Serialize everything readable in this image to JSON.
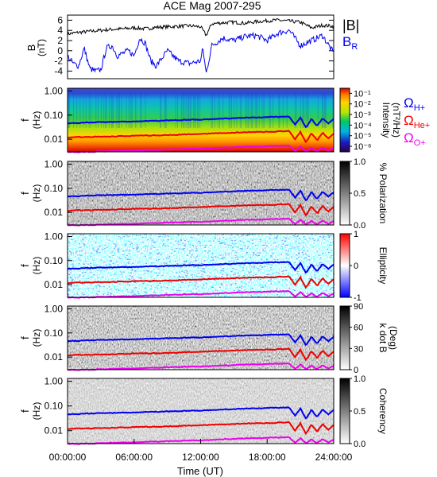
{
  "chart_data": [
    {
      "type": "line",
      "title": "ACE Mag 2007-295",
      "ylabel": "B",
      "yunit": "(nT)",
      "ylim": [
        -5.5,
        7
      ],
      "yticks": [
        "6",
        "4",
        "2",
        "0",
        "-2",
        "-4"
      ],
      "ytick_values": [
        6,
        4,
        2,
        0,
        -2,
        -4
      ],
      "grid": false,
      "legend_position": "right",
      "series": [
        {
          "name": "|B|",
          "color": "#000000",
          "x": [
            0,
            1,
            2,
            3,
            4,
            5,
            6,
            7,
            8,
            9,
            10,
            11,
            12,
            12.5,
            13,
            14,
            15,
            16,
            17,
            18,
            19,
            20,
            21,
            22,
            23,
            24
          ],
          "values": [
            3.3,
            3.6,
            3.8,
            4.0,
            4.2,
            4.3,
            4.5,
            4.3,
            4.6,
            4.7,
            4.8,
            4.9,
            4.7,
            3.0,
            5.3,
            5.5,
            5.6,
            5.4,
            5.7,
            5.9,
            6.0,
            5.8,
            5.6,
            4.5,
            5.0,
            4.8
          ]
        },
        {
          "name": "B",
          "subscript": "R",
          "color": "#0000ee",
          "x": [
            0,
            0.5,
            1,
            1.5,
            2,
            2.5,
            3,
            3.5,
            4,
            4.5,
            5,
            5.5,
            6,
            6.5,
            7,
            7.5,
            8,
            9,
            10,
            11,
            12,
            12.2,
            12.5,
            13,
            14,
            15,
            16,
            17,
            18,
            19,
            20,
            21,
            22,
            23,
            24
          ],
          "values": [
            -1.0,
            -2.5,
            -3.0,
            0.5,
            -3.5,
            -4.0,
            -3.8,
            0.5,
            1.0,
            -1.0,
            -0.5,
            0.0,
            -1.0,
            2.5,
            1.5,
            -2.0,
            -3.0,
            0.0,
            -2.0,
            -2.5,
            -2.0,
            0.5,
            -4.5,
            1.0,
            2.5,
            2.0,
            2.8,
            3.0,
            2.0,
            3.5,
            4.0,
            1.0,
            2.0,
            3.0,
            -0.5
          ]
        }
      ],
      "xlim": [
        0,
        24
      ]
    },
    {
      "type": "heatmap",
      "ylabel": "f",
      "yunit": "(Hz)",
      "yscale": "log",
      "ylim": [
        0.003,
        1.3
      ],
      "yticks": [
        "1.00",
        "0.10",
        "0.01"
      ],
      "ytick_values": [
        1,
        0.1,
        0.01
      ],
      "colorbar_label": "Intensity",
      "colorbar_unit": "(nT²/Hz)",
      "colorbar_scale": "log",
      "colorbar_ticks": [
        "10⁻¹",
        "10⁻²",
        "10⁻³",
        "10⁻⁴",
        "10⁻⁵",
        "10⁻⁶"
      ],
      "colorbar_tick_values": [
        0.1,
        0.01,
        0.001,
        0.0001,
        1e-05,
        1e-06
      ],
      "colorbar_range": [
        3e-07,
        0.3
      ],
      "colormap": "rainbow",
      "legend": [
        {
          "symbol": "Ω",
          "subscript": "H+",
          "color": "#0000ee"
        },
        {
          "symbol": "Ω",
          "subscript": "He+",
          "color": "#ee0000"
        },
        {
          "symbol": "Ω",
          "subscript": "O+",
          "color": "#ee00ee"
        }
      ]
    },
    {
      "type": "heatmap",
      "ylabel": "f",
      "yunit": "(Hz)",
      "yscale": "log",
      "ylim": [
        0.003,
        1.3
      ],
      "yticks": [
        "1.00",
        "0.10",
        "0.01"
      ],
      "ytick_values": [
        1,
        0.1,
        0.01
      ],
      "colorbar_label": "% Polarization",
      "colorbar_ticks": [
        "1.0",
        "0.5",
        "0.0"
      ],
      "colorbar_tick_values": [
        1.0,
        0.5,
        0.0
      ],
      "colorbar_range": [
        0,
        1
      ],
      "colormap": "gray"
    },
    {
      "type": "heatmap",
      "ylabel": "f",
      "yunit": "(Hz)",
      "yscale": "log",
      "ylim": [
        0.003,
        1.3
      ],
      "yticks": [
        "1.00",
        "0.10",
        "0.01"
      ],
      "ytick_values": [
        1,
        0.1,
        0.01
      ],
      "colorbar_label": "Ellipticity",
      "colorbar_ticks": [
        "1",
        "0",
        "-1"
      ],
      "colorbar_tick_values": [
        1,
        0,
        -1
      ],
      "colorbar_range": [
        -1,
        1
      ],
      "colormap": "blue-white-red"
    },
    {
      "type": "heatmap",
      "ylabel": "f",
      "yunit": "(Hz)",
      "yscale": "log",
      "ylim": [
        0.003,
        1.3
      ],
      "yticks": [
        "1.00",
        "0.10",
        "0.01"
      ],
      "ytick_values": [
        1,
        0.1,
        0.01
      ],
      "colorbar_label": "k dot B",
      "colorbar_unit": "(Deg)",
      "colorbar_ticks": [
        "90",
        "60",
        "30",
        "0"
      ],
      "colorbar_tick_values": [
        90,
        60,
        30,
        0
      ],
      "colorbar_range": [
        0,
        90
      ],
      "colormap": "gray"
    },
    {
      "type": "heatmap",
      "ylabel": "f",
      "yunit": "(Hz)",
      "yscale": "log",
      "ylim": [
        0.003,
        1.3
      ],
      "yticks": [
        "1.00",
        "0.10",
        "0.01"
      ],
      "ytick_values": [
        1,
        0.1,
        0.01
      ],
      "colorbar_label": "Coherency",
      "colorbar_ticks": [
        "1.0",
        "0.5",
        "0.0"
      ],
      "colorbar_tick_values": [
        1.0,
        0.5,
        0.0
      ],
      "colorbar_range": [
        0,
        1
      ],
      "colormap": "gray",
      "xlabel": "Time (UT)",
      "xticks": [
        "00:00:00",
        "06:00:00",
        "12:00:00",
        "18:00:00",
        "24:00:00"
      ],
      "xtick_values": [
        0,
        6,
        12,
        18,
        24
      ],
      "xlim": [
        0,
        24
      ]
    }
  ],
  "gyrofrequency_lines": [
    {
      "name": "H+",
      "color": "#0000ee",
      "x": [
        0,
        2,
        4,
        6,
        8,
        10,
        12,
        14,
        16,
        18,
        19,
        20,
        20.5,
        21,
        21.5,
        22,
        22.5,
        23,
        23.5,
        24
      ],
      "f": [
        0.045,
        0.05,
        0.052,
        0.055,
        0.058,
        0.062,
        0.066,
        0.072,
        0.078,
        0.082,
        0.085,
        0.088,
        0.04,
        0.08,
        0.03,
        0.07,
        0.035,
        0.075,
        0.045,
        0.07
      ]
    },
    {
      "name": "He+",
      "color": "#ee0000",
      "x": [
        0,
        2,
        4,
        6,
        8,
        10,
        12,
        14,
        16,
        18,
        19,
        20,
        20.5,
        21,
        21.5,
        22,
        22.5,
        23,
        23.5,
        24
      ],
      "f": [
        0.012,
        0.0125,
        0.013,
        0.014,
        0.0145,
        0.0155,
        0.0165,
        0.018,
        0.0195,
        0.0205,
        0.021,
        0.022,
        0.01,
        0.02,
        0.0075,
        0.0175,
        0.009,
        0.019,
        0.011,
        0.0175
      ]
    },
    {
      "name": "O+",
      "color": "#ee00ee",
      "x": [
        0,
        2,
        4,
        6,
        8,
        10,
        12,
        14,
        16,
        18,
        19,
        20,
        20.5,
        21,
        21.5,
        22,
        22.5,
        23,
        23.5,
        24
      ],
      "f": [
        0.0029,
        0.003,
        0.0032,
        0.0034,
        0.0036,
        0.0039,
        0.0041,
        0.0045,
        0.0049,
        0.0051,
        0.0053,
        0.0055,
        0.0032,
        0.005,
        0.0031,
        0.0044,
        0.0031,
        0.0047,
        0.0033,
        0.0044
      ]
    }
  ]
}
